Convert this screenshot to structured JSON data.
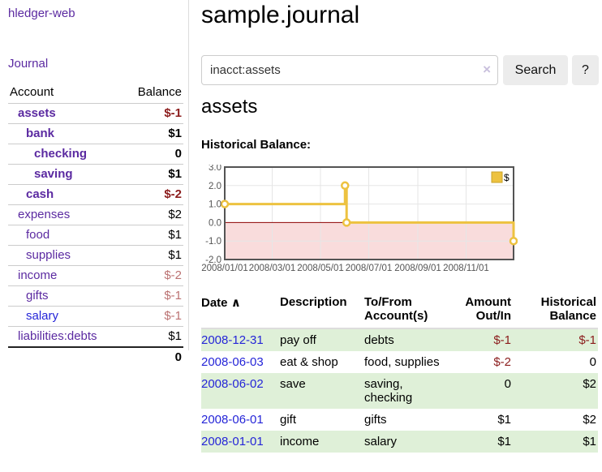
{
  "sidebar": {
    "brand": "hledger-web",
    "nav": {
      "journal": "Journal"
    },
    "accounts_table": {
      "headers": {
        "account": "Account",
        "balance": "Balance"
      },
      "rows": [
        {
          "name": "assets",
          "balance": "$-1"
        },
        {
          "name": "bank",
          "balance": "$1"
        },
        {
          "name": "checking",
          "balance": "0"
        },
        {
          "name": "saving",
          "balance": "$1"
        },
        {
          "name": "cash",
          "balance": "$-2"
        },
        {
          "name": "expenses",
          "balance": "$2"
        },
        {
          "name": "food",
          "balance": "$1"
        },
        {
          "name": "supplies",
          "balance": "$1"
        },
        {
          "name": "income",
          "balance": "$-2"
        },
        {
          "name": "gifts",
          "balance": "$-1"
        },
        {
          "name": "salary",
          "balance": "$-1"
        },
        {
          "name": "liabilities:debts",
          "balance": "$1"
        }
      ],
      "total": "0"
    }
  },
  "header": {
    "title": "sample.journal"
  },
  "search": {
    "value": "inacct:assets",
    "clear_icon": "×",
    "button_label": "Search",
    "help_label": "?"
  },
  "account_page": {
    "heading": "assets",
    "chart_title": "Historical Balance:"
  },
  "chart_data": {
    "type": "line",
    "step": true,
    "series": [
      {
        "name": "$",
        "points": [
          [
            "2008-01-01",
            1
          ],
          [
            "2008-06-01",
            2
          ],
          [
            "2008-06-03",
            0
          ],
          [
            "2008-12-31",
            -1
          ]
        ]
      }
    ],
    "x_range": [
      "2008-01-01",
      "2008-12-31"
    ],
    "x_tick_dates": [
      "2008-01-01",
      "2008-03-01",
      "2008-05-01",
      "2008-07-01",
      "2008-09-01",
      "2008-11-01"
    ],
    "x_tick_labels": [
      "2008/01/01",
      "2008/03/01",
      "2008/05/01",
      "2008/07/01",
      "2008/09/01",
      "2008/11/01"
    ],
    "y_ticks": [
      3.0,
      2.0,
      1.0,
      0.0,
      -1.0,
      -2.0
    ],
    "ylim": [
      -2,
      3
    ],
    "grid": true,
    "legend_position": "top-right",
    "negative_region_shaded": true,
    "colors": {
      "series": "#edc240",
      "marker_fill": "#ffffff",
      "negative_fill": "#f9dcdc",
      "zero_line": "#8b0000",
      "plot_border": "#545454",
      "gridline": "#e6e6e6",
      "tick_text": "#545454",
      "legend_border": "#c9a32a"
    }
  },
  "transactions": {
    "headers": {
      "date": "Date",
      "sort_icon": "∧",
      "description": "Description",
      "accounts": "To/From Account(s)",
      "amount": "Amount Out/In",
      "balance": "Historical Balance"
    },
    "rows": [
      {
        "date": "2008-12-31",
        "description": "pay off",
        "accounts": "debts",
        "amount": "$-1",
        "balance": "$-1"
      },
      {
        "date": "2008-06-03",
        "description": "eat & shop",
        "accounts": "food, supplies",
        "amount": "$-2",
        "balance": "0"
      },
      {
        "date": "2008-06-02",
        "description": "save",
        "accounts": "saving, checking",
        "amount": "0",
        "balance": "$2"
      },
      {
        "date": "2008-06-01",
        "description": "gift",
        "accounts": "gifts",
        "amount": "$1",
        "balance": "$2"
      },
      {
        "date": "2008-01-01",
        "description": "income",
        "accounts": "salary",
        "amount": "$1",
        "balance": "$1"
      }
    ]
  }
}
